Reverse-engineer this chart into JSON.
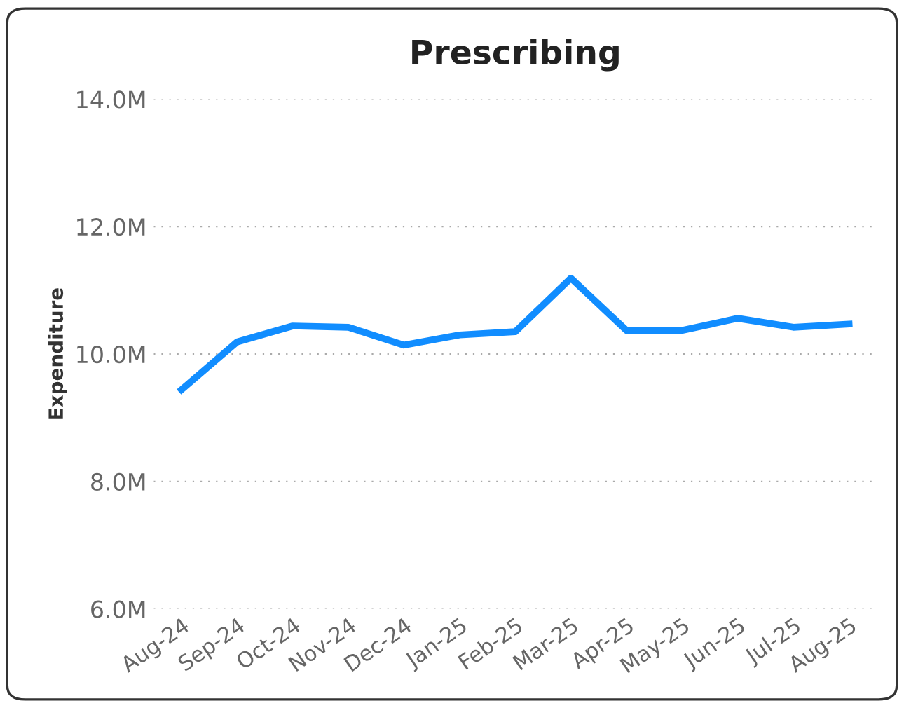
{
  "chart_data": {
    "type": "line",
    "title": "Prescribing",
    "ylabel": "Expenditure",
    "categories": [
      "Aug-24",
      "Sep-24",
      "Oct-24",
      "Nov-24",
      "Dec-24",
      "Jan-25",
      "Feb-25",
      "Mar-25",
      "Apr-25",
      "May-25",
      "Jun-25",
      "Jul-25",
      "Aug-25"
    ],
    "series": [
      {
        "color": "#118dff",
        "values": [
          9.44,
          10.19,
          10.44,
          10.42,
          10.14,
          10.3,
          10.35,
          11.19,
          10.37,
          10.37,
          10.56,
          10.42,
          10.47
        ]
      }
    ],
    "ylim": [
      6,
      14
    ],
    "yticks": [
      {
        "value": 6,
        "label": "6.0M"
      },
      {
        "value": 8,
        "label": "8.0M"
      },
      {
        "value": 10,
        "label": "10.0M"
      },
      {
        "value": 12,
        "label": "12.0M"
      },
      {
        "value": 14,
        "label": "14.0M"
      }
    ],
    "grid": "y",
    "legend": false,
    "marker": "none",
    "line_style": "solid"
  }
}
